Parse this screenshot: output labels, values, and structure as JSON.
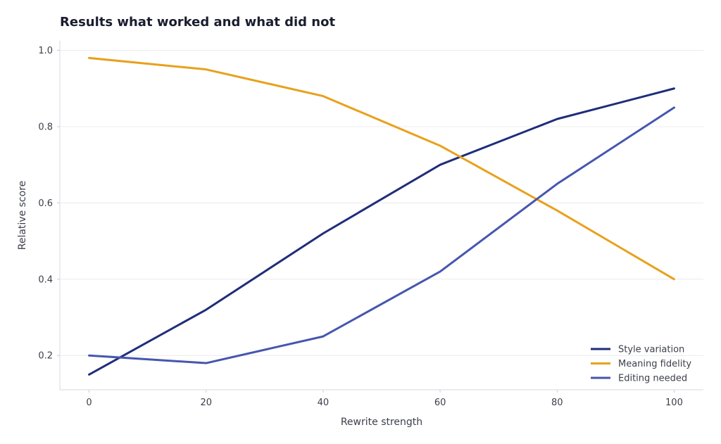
{
  "chart_data": {
    "type": "line",
    "title": "Results what worked and what did not",
    "xlabel": "Rewrite strength",
    "ylabel": "Relative score",
    "x": [
      0,
      20,
      40,
      60,
      80,
      100
    ],
    "xlim": [
      -5,
      105
    ],
    "ylim": [
      0.11,
      1.025
    ],
    "xticks": [
      "0",
      "20",
      "40",
      "60",
      "80",
      "100"
    ],
    "yticks": [
      "0.2",
      "0.4",
      "0.6",
      "0.8",
      "1.0"
    ],
    "grid": true,
    "legend_position": "bottom-right",
    "series": [
      {
        "name": "Style variation",
        "color": "#1f2d7a",
        "values": [
          0.15,
          0.32,
          0.52,
          0.7,
          0.82,
          0.9
        ]
      },
      {
        "name": "Meaning fidelity",
        "color": "#e8a11c",
        "values": [
          0.98,
          0.95,
          0.88,
          0.75,
          0.58,
          0.4
        ]
      },
      {
        "name": "Editing needed",
        "color": "#4656ae",
        "values": [
          0.2,
          0.18,
          0.25,
          0.42,
          0.65,
          0.85
        ]
      }
    ]
  }
}
